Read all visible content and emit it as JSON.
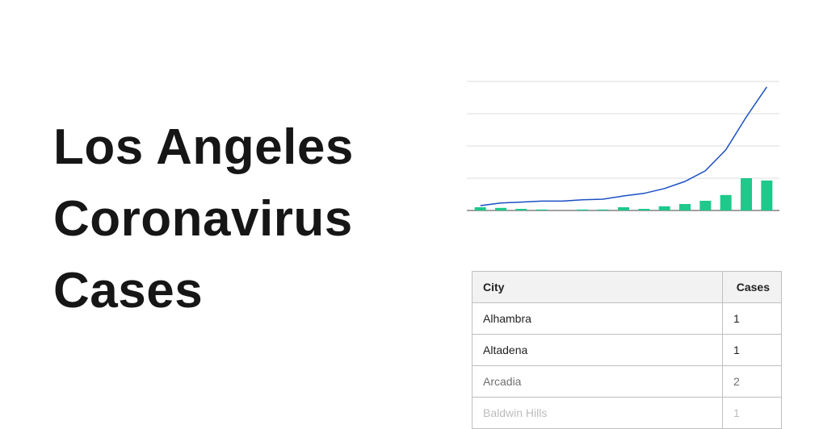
{
  "header": {
    "title": [
      "Los Angeles",
      "Coronavirus",
      "Cases"
    ]
  },
  "chart_data": {
    "type": "bar_line",
    "categories": [
      null,
      null,
      null,
      null,
      null,
      null,
      null,
      null,
      null,
      null,
      null,
      null,
      null,
      null,
      null
    ],
    "series": [
      {
        "name": null,
        "type": "bar",
        "color": "#1ec98b",
        "values": [
          0.1,
          0.08,
          0.05,
          0.03,
          0,
          0.03,
          0.03,
          0.1,
          0.05,
          0.13,
          0.2,
          0.3,
          0.48,
          1.0,
          0.93
        ]
      },
      {
        "name": null,
        "type": "line",
        "color": "#1a4fc4",
        "values": [
          0.15,
          0.23,
          0.26,
          0.29,
          0.29,
          0.33,
          0.35,
          0.45,
          0.53,
          0.68,
          0.9,
          1.23,
          1.88,
          2.9,
          3.83
        ]
      }
    ],
    "ylim": [
      0,
      4
    ],
    "yticks": [
      0,
      1,
      2,
      3,
      4
    ],
    "grid": true
  },
  "table": {
    "columns": [
      "City",
      "Cases"
    ],
    "rows": [
      [
        "Alhambra",
        "1"
      ],
      [
        "Altadena",
        "1"
      ],
      [
        "Arcadia",
        "2"
      ],
      [
        "Baldwin Hills",
        "1"
      ]
    ]
  }
}
